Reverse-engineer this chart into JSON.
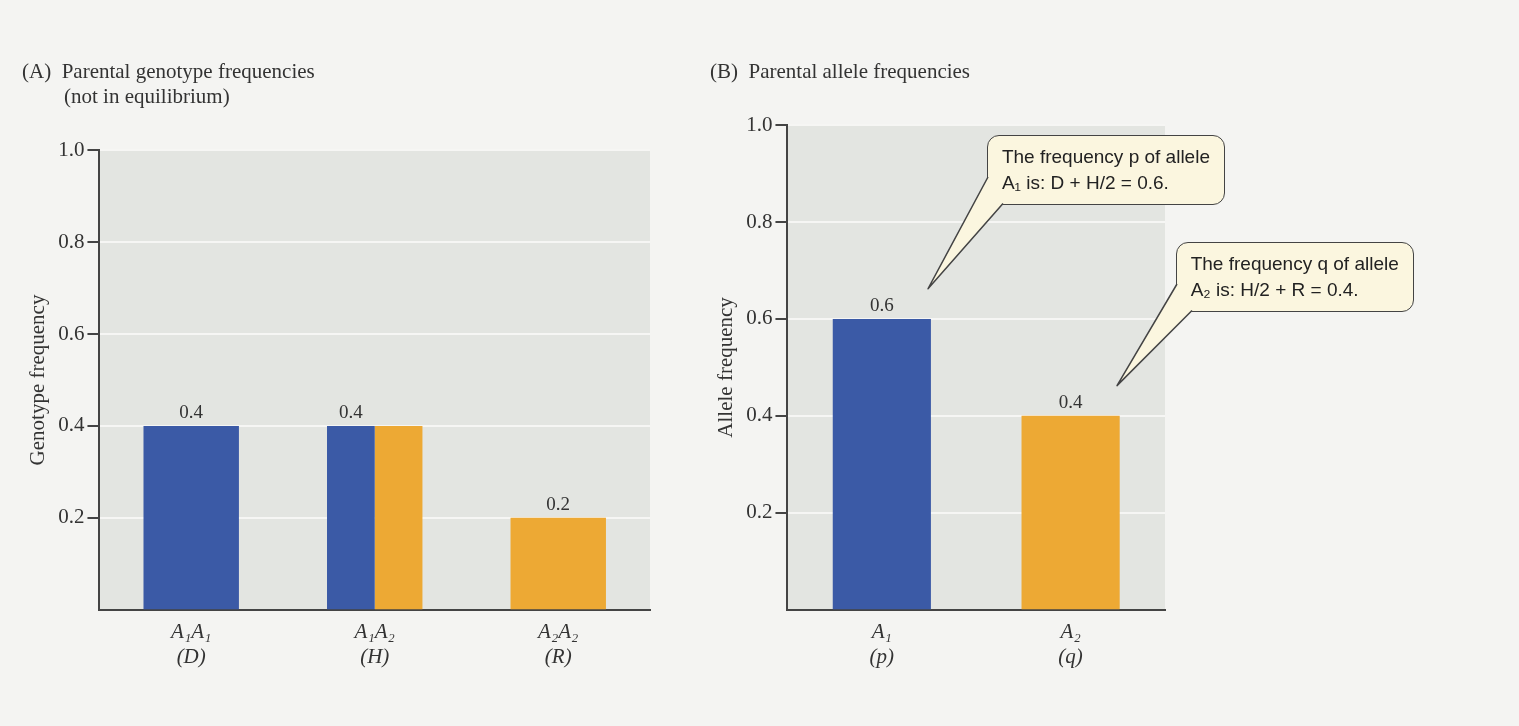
{
  "chart_data": [
    {
      "type": "bar",
      "title": "(A)  Parental genotype frequencies\n        (not in equilibrium)",
      "ylabel": "Genotype frequency",
      "categories": [
        "A₁A₁\n(D)",
        "A₁A₂\n(H)",
        "A₂A₂\n(R)"
      ],
      "series": [
        {
          "color": "#3b5aa6",
          "values": [
            0.4,
            0.4,
            null
          ],
          "value_labels": [
            "0.4",
            "0.4",
            null
          ]
        },
        {
          "color": "#eda934",
          "values": [
            null,
            0.4,
            0.2
          ],
          "value_labels": [
            null,
            null,
            "0.2"
          ]
        }
      ],
      "ylim": [
        0,
        1
      ],
      "yticks": [
        0.2,
        0.4,
        0.6,
        0.8,
        {
          "value": 1,
          "label": "1.0"
        }
      ],
      "grid": "y"
    },
    {
      "type": "bar",
      "title": "(B)  Parental allele frequencies",
      "ylabel": "Allele frequency",
      "categories": [
        "A₁\n(p)",
        "A₂\n(q)"
      ],
      "values": [
        0.6,
        0.4
      ],
      "colors": [
        "#3b5aa6",
        "#eda934"
      ],
      "data_labels": true,
      "ylim": [
        0,
        1
      ],
      "yticks": [
        0.2,
        0.4,
        0.6,
        0.8,
        {
          "value": 1,
          "label": "1.0"
        }
      ],
      "grid": "y",
      "annotations": [
        "The frequency p of allele\nA₁ is: D + H/2 = 0.6.",
        "The frequency q of allele\nA₂ is: H/2 + R = 0.4."
      ]
    }
  ]
}
